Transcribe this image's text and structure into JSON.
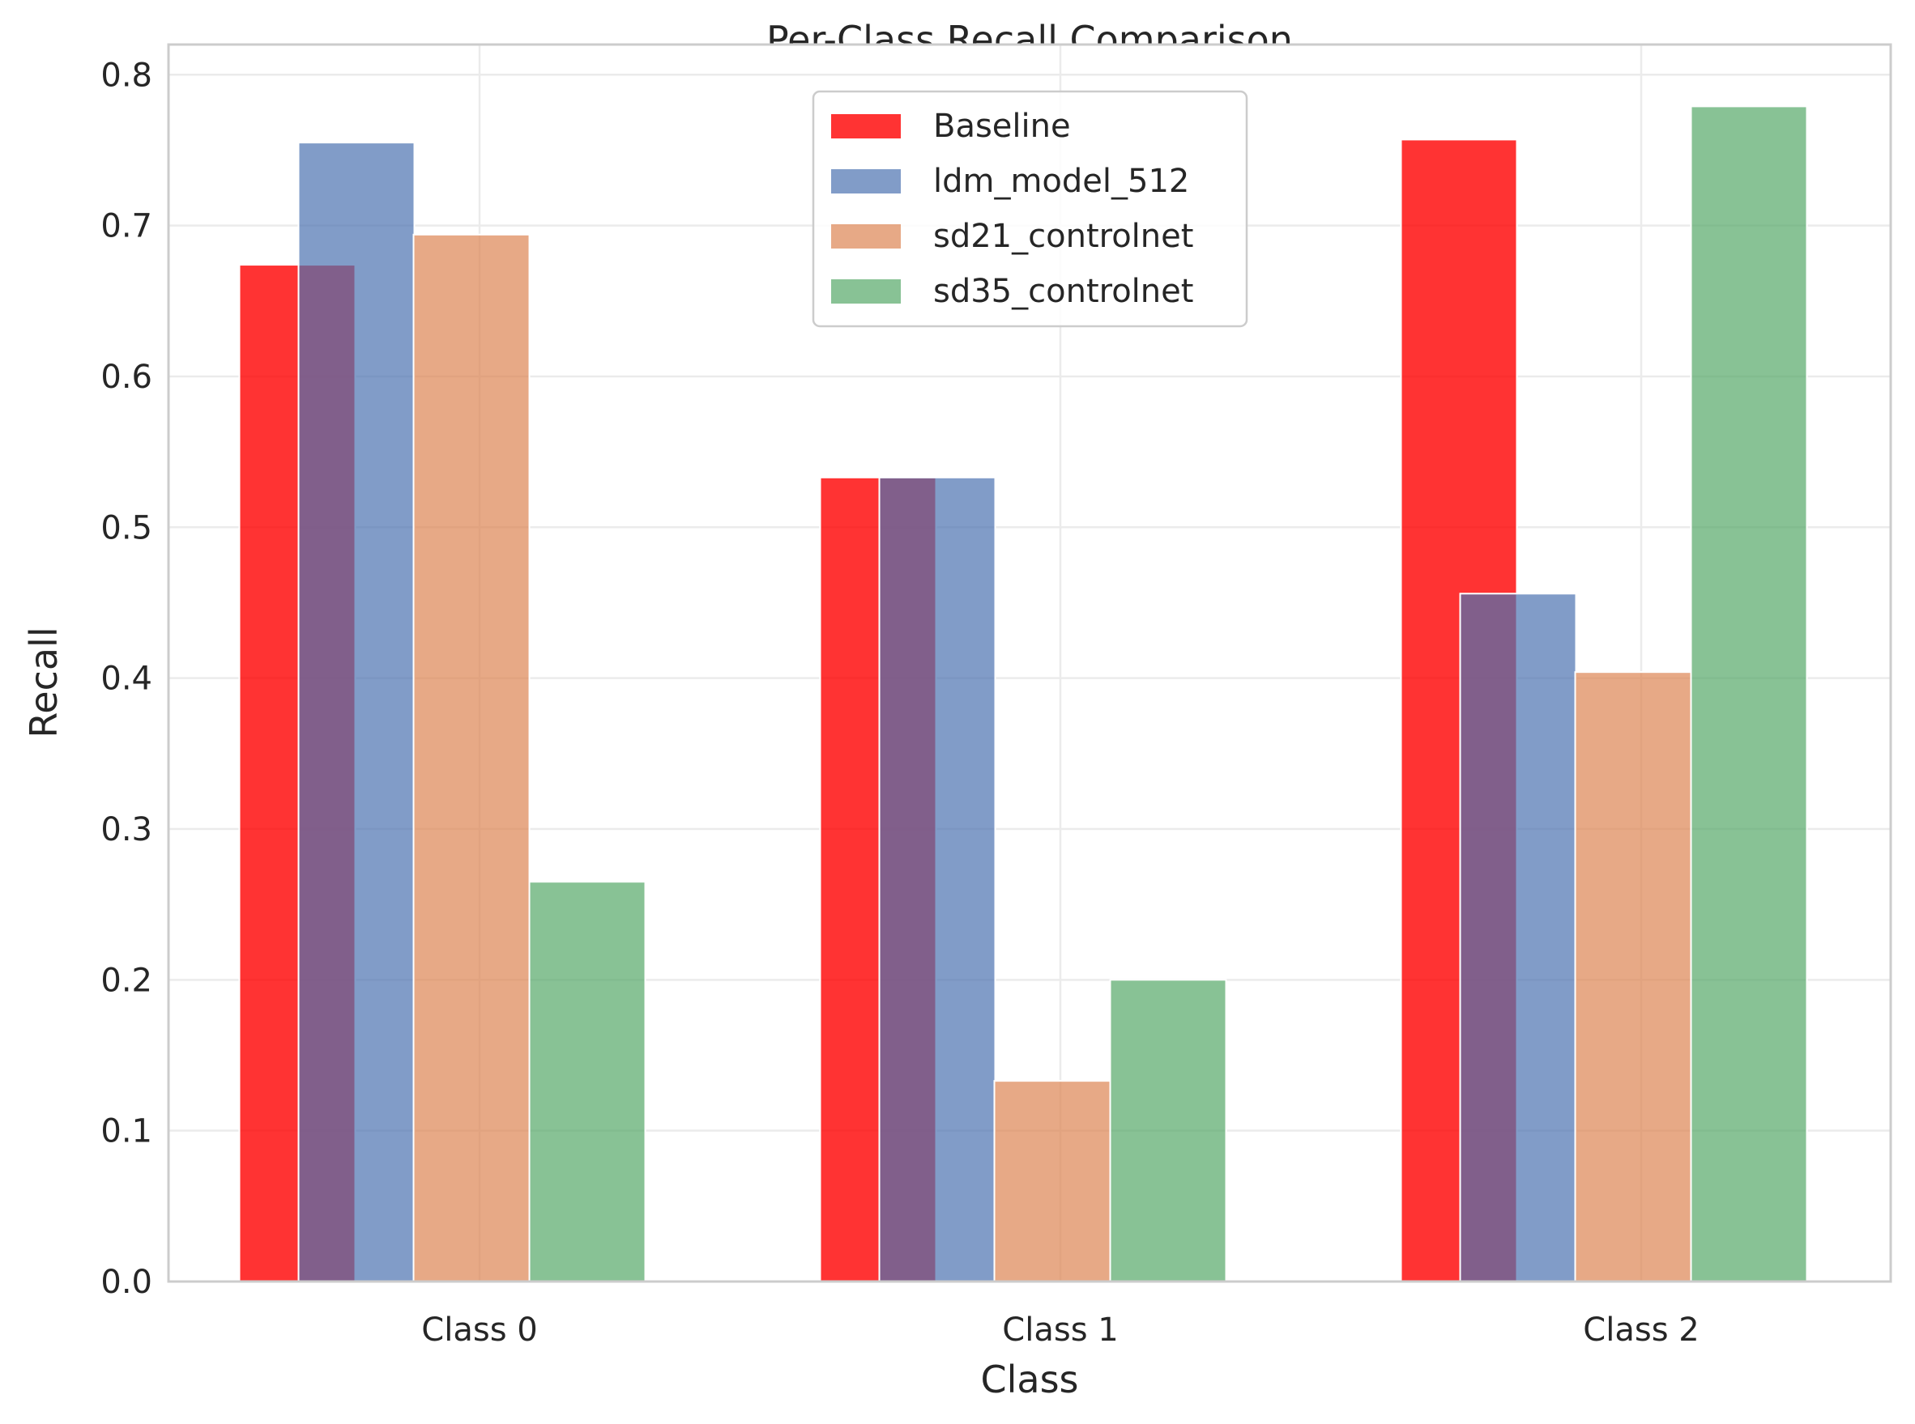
{
  "chart_data": {
    "type": "bar",
    "title": "Per-Class Recall Comparison",
    "xlabel": "Class",
    "ylabel": "Recall",
    "categories": [
      "Class 0",
      "Class 1",
      "Class 2"
    ],
    "ylim": [
      0.0,
      0.82
    ],
    "yticks": [
      "0.0",
      "0.1",
      "0.2",
      "0.3",
      "0.4",
      "0.5",
      "0.6",
      "0.7",
      "0.8"
    ],
    "grid": true,
    "legend_position": "top-center",
    "series": [
      {
        "name": "Baseline",
        "color": "#ff0000",
        "opacity": 0.8,
        "values": [
          0.674,
          0.533,
          0.757
        ]
      },
      {
        "name": "ldm_model_512",
        "color": "#4c72b0",
        "opacity": 0.7,
        "values": [
          0.755,
          0.533,
          0.456
        ]
      },
      {
        "name": "sd21_controlnet",
        "color": "#dd8452",
        "opacity": 0.7,
        "values": [
          0.694,
          0.133,
          0.404
        ]
      },
      {
        "name": "sd35_controlnet",
        "color": "#55a868",
        "opacity": 0.7,
        "values": [
          0.265,
          0.2,
          0.779
        ]
      }
    ]
  }
}
